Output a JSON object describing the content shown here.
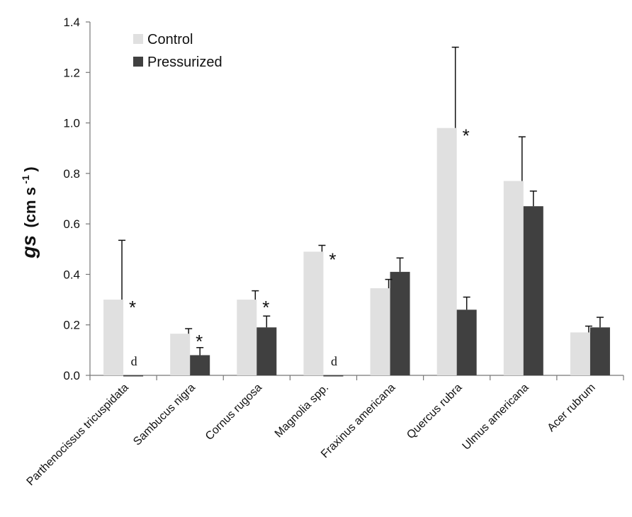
{
  "chart_data": {
    "type": "bar",
    "ylabel_main": "gs",
    "ylabel_unit": "(cm s",
    "ylabel_sup": "-1",
    "ylabel_close": ")",
    "ylim": [
      0,
      1.4
    ],
    "yticks": [
      "0.0",
      "0.2",
      "0.4",
      "0.6",
      "0.8",
      "1.0",
      "1.2",
      "1.4"
    ],
    "categories": [
      "Parthenocissus tricuspidata",
      "Sambucus nigra",
      "Cornus rugosa",
      "Magnolia spp.",
      "Fraxinus americana",
      "Quercus rubra",
      "Ulmus americana",
      "Acer rubrum"
    ],
    "series": [
      {
        "name": "Control",
        "color": "#e0e0e0",
        "values": [
          0.3,
          0.165,
          0.3,
          0.49,
          0.345,
          0.98,
          0.77,
          0.17
        ],
        "errors": [
          0.235,
          0.02,
          0.035,
          0.025,
          0.035,
          0.32,
          0.175,
          0.025
        ]
      },
      {
        "name": "Pressurized",
        "color": "#404040",
        "values": [
          0.0,
          0.08,
          0.19,
          0.0,
          0.41,
          0.26,
          0.67,
          0.19
        ],
        "errors": [
          0,
          0.03,
          0.045,
          0,
          0.055,
          0.05,
          0.06,
          0.04
        ]
      }
    ],
    "annotations": [
      {
        "category": 0,
        "text": "*",
        "kind": "star"
      },
      {
        "category": 0,
        "text": "d",
        "kind": "d"
      },
      {
        "category": 1,
        "text": "*",
        "kind": "star"
      },
      {
        "category": 2,
        "text": "*",
        "kind": "star"
      },
      {
        "category": 3,
        "text": "*",
        "kind": "star"
      },
      {
        "category": 3,
        "text": "d",
        "kind": "d"
      },
      {
        "category": 5,
        "text": "*",
        "kind": "star"
      }
    ],
    "legend": {
      "position": "top-left",
      "items": [
        "Control",
        "Pressurized"
      ]
    }
  }
}
